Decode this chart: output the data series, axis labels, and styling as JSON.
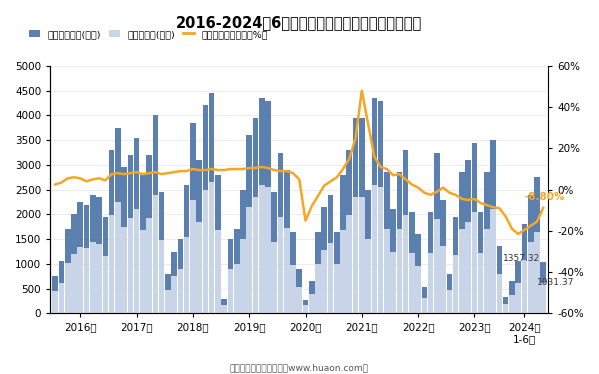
{
  "title": "2016-2024年6月重庆市房地产投资额及住宅投资额",
  "legend_labels": [
    "房地产投资额(亿元)",
    "住宅投资额(亿元)",
    "房地产投资额增速（%）"
  ],
  "bar_color_real_estate": "#5b7fae",
  "bar_color_residential": "#c8d5e8",
  "line_color": "#f5a623",
  "annotation_color_rate": "#f5a623",
  "annotation_color_value": "#333333",
  "background_color": "#FFFFFF",
  "real_estate_investment": [
    750,
    1050,
    1700,
    2000,
    2250,
    2200,
    2400,
    2350,
    1950,
    3300,
    3750,
    2950,
    3200,
    3550,
    2800,
    3200,
    4000,
    2450,
    800,
    1250,
    1500,
    2600,
    3850,
    3100,
    4200,
    4450,
    2800,
    300,
    1500,
    1700,
    2500,
    3600,
    3950,
    4350,
    4300,
    2450,
    3250,
    2900,
    1650,
    900,
    280,
    650,
    1650,
    2150,
    2400,
    1650,
    2800,
    3300,
    3950,
    3950,
    2500,
    4350,
    4300,
    2850,
    2100,
    2850,
    3300,
    2050,
    1600,
    540,
    2050,
    3250,
    2300,
    800,
    1950,
    2850,
    3100,
    3450,
    2050,
    2850,
    3500,
    1357.32,
    340,
    650,
    1050,
    1800,
    2400,
    2750,
    1031.37
  ],
  "residential_investment": [
    450,
    620,
    1020,
    1200,
    1350,
    1320,
    1450,
    1400,
    1150,
    1980,
    2250,
    1750,
    1920,
    2100,
    1680,
    1920,
    2400,
    1480,
    480,
    750,
    900,
    1550,
    2300,
    1850,
    2500,
    2650,
    1680,
    180,
    900,
    1000,
    1500,
    2150,
    2350,
    2600,
    2550,
    1450,
    1950,
    1730,
    980,
    540,
    165,
    390,
    990,
    1280,
    1430,
    990,
    1680,
    1980,
    2350,
    2350,
    1500,
    2600,
    2550,
    1700,
    1250,
    1700,
    1980,
    1230,
    950,
    320,
    1220,
    1900,
    1370,
    480,
    1170,
    1700,
    1850,
    2050,
    1220,
    1700,
    2100,
    800,
    195,
    380,
    620,
    1080,
    1440,
    1640,
    610
  ],
  "growth_rate": [
    2.5,
    3.5,
    5.5,
    6.0,
    5.5,
    4.0,
    5.0,
    5.5,
    4.5,
    7.5,
    8.0,
    7.5,
    8.0,
    8.5,
    7.5,
    8.0,
    8.5,
    7.5,
    8.0,
    8.5,
    9.0,
    9.0,
    10.0,
    9.5,
    9.5,
    10.0,
    9.5,
    9.5,
    10.0,
    10.0,
    10.0,
    10.5,
    10.5,
    11.0,
    10.5,
    9.5,
    9.0,
    9.0,
    8.0,
    5.0,
    -15.0,
    -8.0,
    -3.0,
    2.0,
    4.0,
    6.0,
    10.0,
    15.0,
    25.0,
    48.0,
    32.0,
    16.0,
    11.0,
    10.0,
    7.0,
    7.5,
    5.0,
    2.5,
    1.0,
    -1.5,
    -2.5,
    -1.0,
    1.0,
    -1.5,
    -2.5,
    -4.5,
    -5.0,
    -4.5,
    -6.5,
    -7.5,
    -8.5,
    -9.0,
    -13.0,
    -19.0,
    -21.5,
    -19.5,
    -17.5,
    -15.5,
    -8.8
  ],
  "ylim_left": [
    0,
    5000
  ],
  "ylim_right": [
    -60,
    60
  ],
  "yticks_left": [
    0,
    500,
    1000,
    1500,
    2000,
    2500,
    3000,
    3500,
    4000,
    4500,
    5000
  ],
  "yticks_right": [
    -60,
    -40,
    -20,
    0,
    20,
    40,
    60
  ],
  "annotation_rate": "-8.80%",
  "annotation_val1": "1357.32",
  "annotation_val2": "1031.37",
  "footer": "制图：华经产业研究院（www.huaon.com）",
  "group_sizes": [
    9,
    9,
    9,
    9,
    9,
    9,
    9,
    9,
    7
  ]
}
